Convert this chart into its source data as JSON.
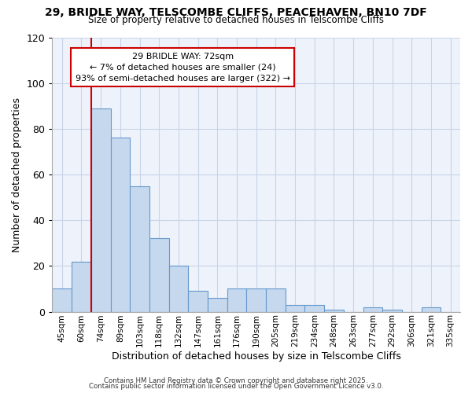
{
  "title_line1": "29, BRIDLE WAY, TELSCOMBE CLIFFS, PEACEHAVEN, BN10 7DF",
  "title_line2": "Size of property relative to detached houses in Telscombe Cliffs",
  "xlabel": "Distribution of detached houses by size in Telscombe Cliffs",
  "ylabel": "Number of detached properties",
  "categories": [
    "45sqm",
    "60sqm",
    "74sqm",
    "89sqm",
    "103sqm",
    "118sqm",
    "132sqm",
    "147sqm",
    "161sqm",
    "176sqm",
    "190sqm",
    "205sqm",
    "219sqm",
    "234sqm",
    "248sqm",
    "263sqm",
    "277sqm",
    "292sqm",
    "306sqm",
    "321sqm",
    "335sqm"
  ],
  "values": [
    10,
    22,
    89,
    76,
    55,
    32,
    20,
    9,
    6,
    10,
    10,
    10,
    3,
    3,
    1,
    0,
    2,
    1,
    0,
    2,
    0
  ],
  "bar_color": "#c5d8ee",
  "bar_edge_color": "#6699cc",
  "bar_linewidth": 0.8,
  "red_line_index": 2,
  "annotation_text_line1": "29 BRIDLE WAY: 72sqm",
  "annotation_text_line2": "← 7% of detached houses are smaller (24)",
  "annotation_text_line3": "93% of semi-detached houses are larger (322) →",
  "annotation_box_color": "#ffffff",
  "annotation_box_edge": "#cc0000",
  "red_line_color": "#cc0000",
  "grid_color": "#c8d4e8",
  "background_color": "#eef2fb",
  "footer_line1": "Contains HM Land Registry data © Crown copyright and database right 2025.",
  "footer_line2": "Contains public sector information licensed under the Open Government Licence v3.0.",
  "ylim": [
    0,
    120
  ],
  "yticks": [
    0,
    20,
    40,
    60,
    80,
    100,
    120
  ]
}
